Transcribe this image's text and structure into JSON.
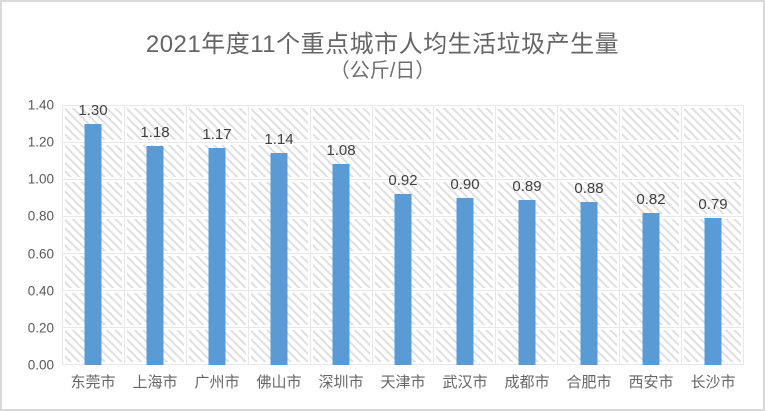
{
  "frame": {
    "background_color": "#ffffff",
    "border_color": "#d9d9d9"
  },
  "chart_data": {
    "type": "bar",
    "title": "2021年度11个重点城市人均生活垃圾产生量",
    "subtitle": "（公斤/日）",
    "categories": [
      "东莞市",
      "上海市",
      "广州市",
      "佛山市",
      "深圳市",
      "天津市",
      "武汉市",
      "成都市",
      "合肥市",
      "西安市",
      "长沙市"
    ],
    "values": [
      1.3,
      1.18,
      1.17,
      1.14,
      1.08,
      0.92,
      0.9,
      0.89,
      0.88,
      0.82,
      0.79
    ],
    "data_labels": [
      "1.30",
      "1.18",
      "1.17",
      "1.14",
      "1.08",
      "0.92",
      "0.90",
      "0.89",
      "0.88",
      "0.82",
      "0.79"
    ],
    "y_tick_labels": [
      "1.40",
      "1.20",
      "1.00",
      "0.80",
      "0.60",
      "0.40",
      "0.20",
      "0.00"
    ],
    "ylim": [
      0,
      1.4
    ],
    "y_step": 0.2,
    "xlabel": "",
    "ylabel": "",
    "bar_color": "#5b9bd5",
    "grid": true,
    "plot_background": "diagonal-hatch",
    "legend_position": "none",
    "data_label_color": "#404040",
    "axis_label_color": "#595959",
    "title_color": "#656565"
  }
}
